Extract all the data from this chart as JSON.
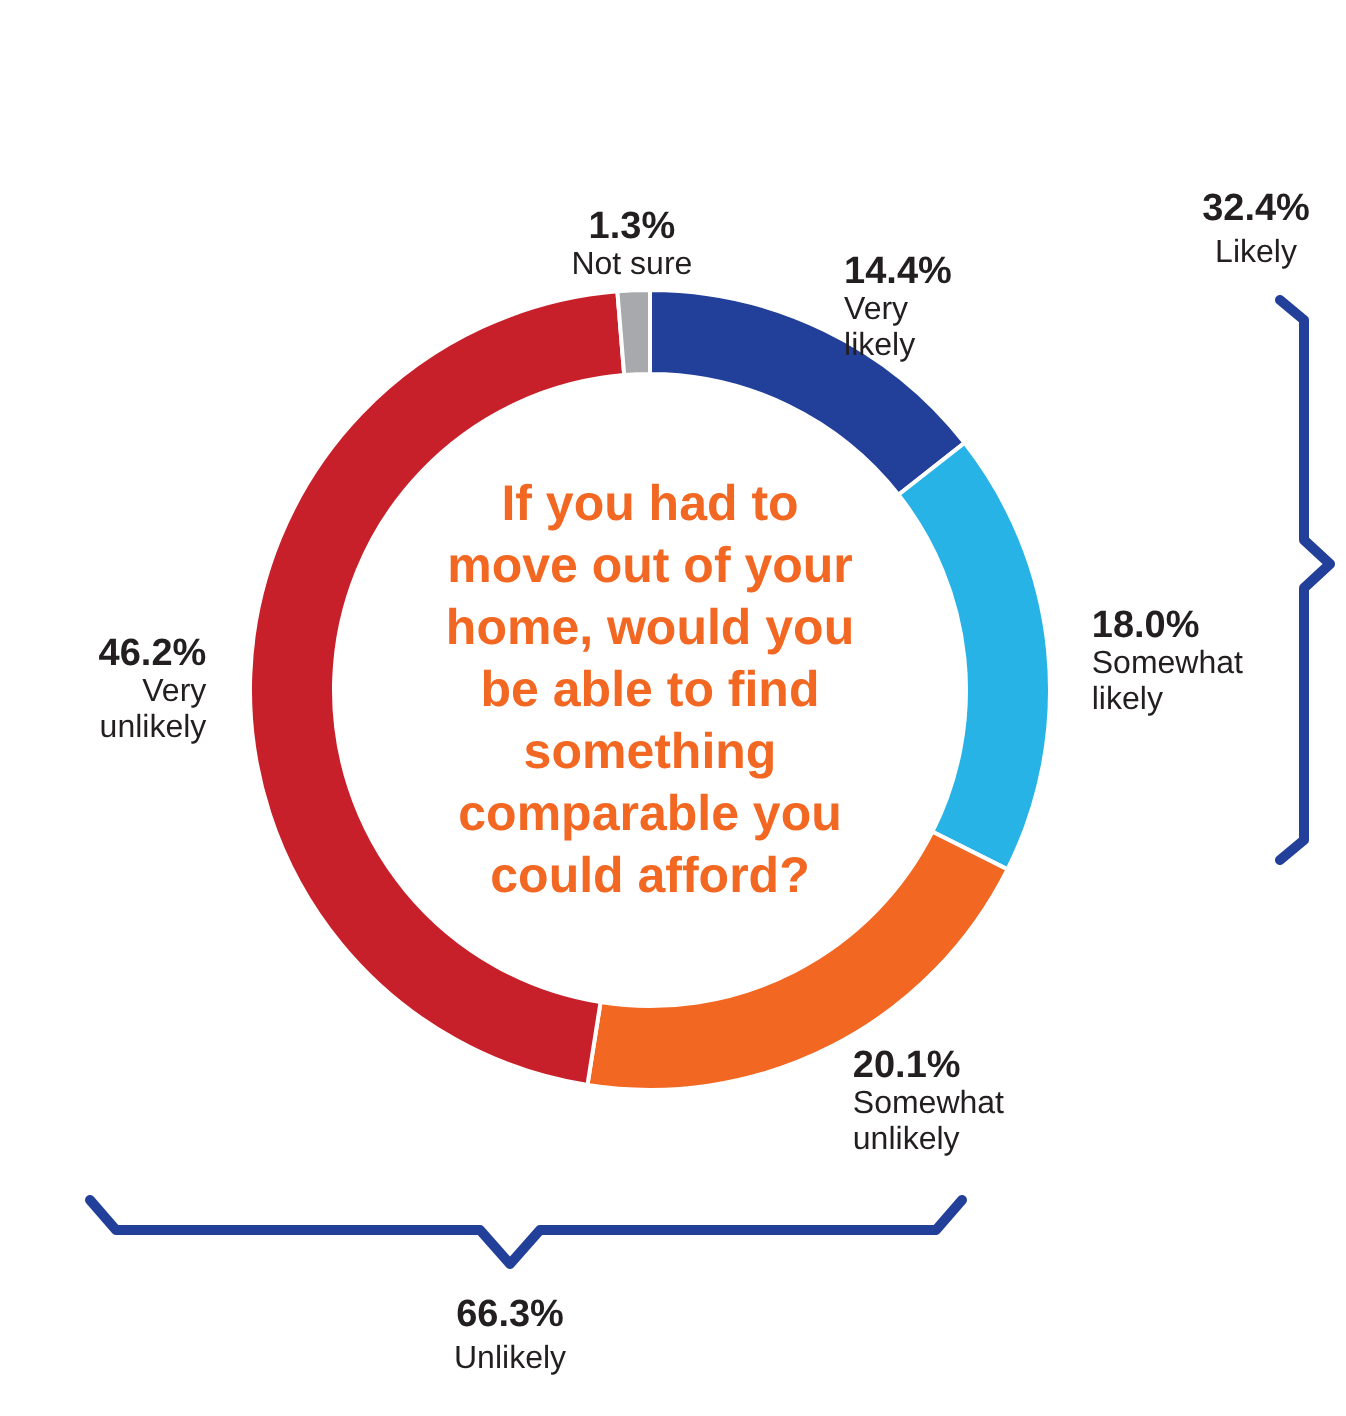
{
  "chart_data": {
    "type": "donut",
    "title": "If you had to move out of your home, would you be able to find something comparable you could afford?",
    "categories": [
      "Very likely",
      "Somewhat likely",
      "Somewhat unlikely",
      "Very unlikely",
      "Not sure"
    ],
    "values": [
      14.4,
      18.0,
      20.1,
      46.2,
      1.3
    ],
    "value_labels": [
      "14.4%",
      "18.0%",
      "20.1%",
      "46.2%",
      "1.3%"
    ],
    "colors": [
      "#22409a",
      "#27b3e6",
      "#f26722",
      "#c8202a",
      "#a7a9ac"
    ],
    "annotations": [
      "32.4% Likely",
      "66.3% Unlikely"
    ]
  }
}
